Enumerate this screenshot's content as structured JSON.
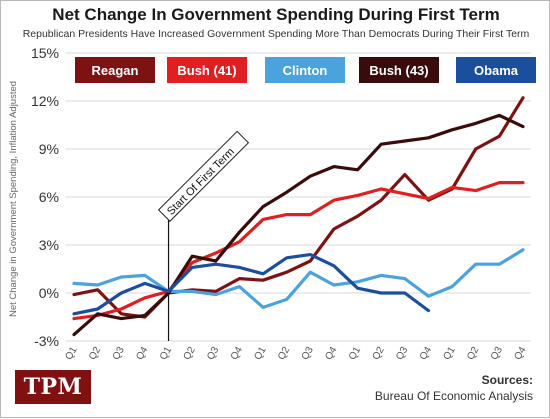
{
  "chart_data": {
    "type": "line",
    "title": "Net Change In Government Spending During First Term",
    "subtitle": "Republican Presidents Have Increased Government Spending More Than Democrats During Their First Term",
    "ylabel": "Net Change in Government Spending, Inflation Adjusted",
    "xlabel": "",
    "x": [
      "Q1",
      "Q2",
      "Q3",
      "Q4",
      "Q1",
      "Q2",
      "Q3",
      "Q4",
      "Q1",
      "Q2",
      "Q3",
      "Q4",
      "Q1",
      "Q2",
      "Q3",
      "Q4",
      "Q1",
      "Q2",
      "Q3",
      "Q4"
    ],
    "ylim": [
      -3,
      15
    ],
    "yticks": [
      -3,
      0,
      3,
      6,
      9,
      12,
      15
    ],
    "ytick_labels": [
      "-3%",
      "0%",
      "3%",
      "6%",
      "9%",
      "12%",
      "15%"
    ],
    "grid": true,
    "legend": "top",
    "annotation": {
      "label": "Start Of First Term",
      "x_index": 4
    },
    "series": [
      {
        "name": "Reagan",
        "color": "#7d1212",
        "values": [
          -0.1,
          0.2,
          -1.3,
          -1.5,
          0.0,
          0.2,
          0.1,
          0.9,
          0.8,
          1.3,
          2.0,
          4.0,
          4.8,
          5.8,
          7.4,
          5.8,
          6.5,
          9.0,
          9.8,
          12.2
        ]
      },
      {
        "name": "Bush (41)",
        "color": "#e02020",
        "values": [
          -1.6,
          -1.4,
          -1.0,
          -0.3,
          0.1,
          1.9,
          2.5,
          3.2,
          4.6,
          4.9,
          4.9,
          5.8,
          6.1,
          6.5,
          6.2,
          5.9,
          6.6,
          6.4,
          6.9,
          6.9
        ]
      },
      {
        "name": "Clinton",
        "color": "#4aa3dc",
        "values": [
          0.6,
          0.5,
          1.0,
          1.1,
          0.1,
          0.1,
          -0.1,
          0.4,
          -0.9,
          -0.4,
          1.3,
          0.5,
          0.7,
          1.1,
          0.9,
          -0.2,
          0.4,
          1.8,
          1.8,
          2.7
        ]
      },
      {
        "name": "Bush (43)",
        "color": "#3a0b0b",
        "values": [
          -2.6,
          -1.3,
          -1.6,
          -1.4,
          0.0,
          2.3,
          2.0,
          3.8,
          5.4,
          6.3,
          7.3,
          7.9,
          7.7,
          9.3,
          9.5,
          9.7,
          10.2,
          10.6,
          11.1,
          10.4
        ]
      },
      {
        "name": "Obama",
        "color": "#1b4f9e",
        "values": [
          -1.3,
          -1.0,
          0.0,
          0.6,
          0.1,
          1.6,
          1.8,
          1.6,
          1.2,
          2.2,
          2.4,
          1.7,
          0.3,
          0.0,
          0.0,
          -1.1,
          null,
          null,
          null,
          null
        ]
      }
    ]
  },
  "footer": {
    "logo_text": "TPM",
    "sources_label": "Sources:",
    "sources_text": "Bureau Of Economic Analysis"
  }
}
